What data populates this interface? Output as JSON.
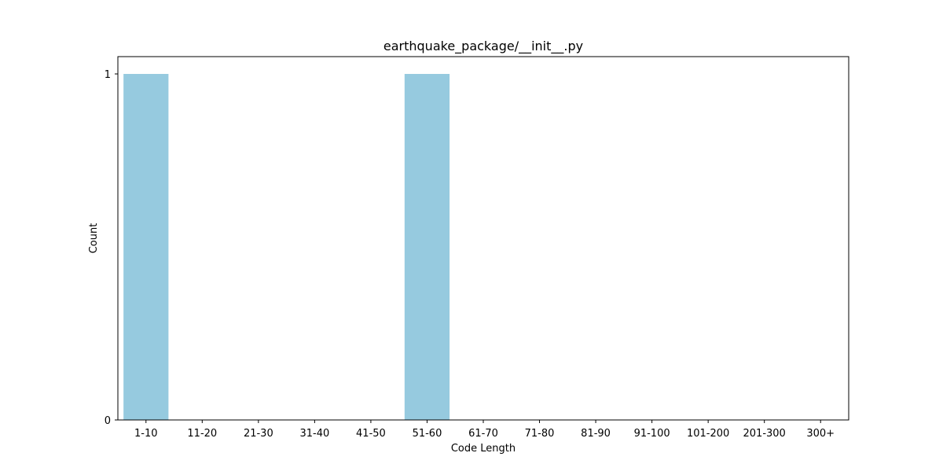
{
  "chart_data": {
    "type": "bar",
    "title": "earthquake_package/__init__.py",
    "xlabel": "Code Length",
    "ylabel": "Count",
    "categories": [
      "1-10",
      "11-20",
      "21-30",
      "31-40",
      "41-50",
      "51-60",
      "61-70",
      "71-80",
      "81-90",
      "91-100",
      "101-200",
      "201-300",
      "300+"
    ],
    "values": [
      1,
      0,
      0,
      0,
      0,
      1,
      0,
      0,
      0,
      0,
      0,
      0,
      0
    ],
    "yticks": [
      0,
      1
    ],
    "ylim": [
      0,
      1.05
    ],
    "grid": false,
    "bar_color": "#96cadf",
    "axis_color": "#000000"
  }
}
